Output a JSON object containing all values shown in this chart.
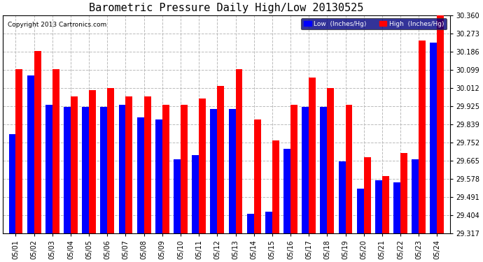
{
  "title": "Barometric Pressure Daily High/Low 20130525",
  "copyright": "Copyright 2013 Cartronics.com",
  "legend_low": "Low  (Inches/Hg)",
  "legend_high": "High  (Inches/Hg)",
  "dates": [
    "05/01",
    "05/02",
    "05/03",
    "05/04",
    "05/05",
    "05/06",
    "05/07",
    "05/08",
    "05/09",
    "05/10",
    "05/11",
    "05/12",
    "05/13",
    "05/14",
    "05/15",
    "05/16",
    "05/17",
    "05/18",
    "05/19",
    "05/20",
    "05/21",
    "05/22",
    "05/23",
    "05/24"
  ],
  "low": [
    29.79,
    30.07,
    29.93,
    29.92,
    29.92,
    29.92,
    29.93,
    29.87,
    29.86,
    29.67,
    29.69,
    29.91,
    29.91,
    29.41,
    29.42,
    29.72,
    29.92,
    29.92,
    29.66,
    29.53,
    29.57,
    29.56,
    29.67,
    30.23
  ],
  "high": [
    30.1,
    30.19,
    30.1,
    29.97,
    30.0,
    30.01,
    29.97,
    29.97,
    29.93,
    29.93,
    29.96,
    30.02,
    30.1,
    29.86,
    29.76,
    29.93,
    30.06,
    30.01,
    29.93,
    29.68,
    29.59,
    29.7,
    30.24,
    30.36
  ],
  "ymin": 29.317,
  "ymax": 30.36,
  "yticks": [
    29.317,
    29.404,
    29.491,
    29.578,
    29.665,
    29.752,
    29.839,
    29.925,
    30.012,
    30.099,
    30.186,
    30.273,
    30.36
  ],
  "bar_width": 0.38,
  "low_color": "#0000ff",
  "high_color": "#ff0000",
  "bg_color": "#ffffff",
  "grid_color": "#bbbbbb",
  "title_fontsize": 11,
  "tick_fontsize": 7,
  "legend_facecolor": "#000080"
}
